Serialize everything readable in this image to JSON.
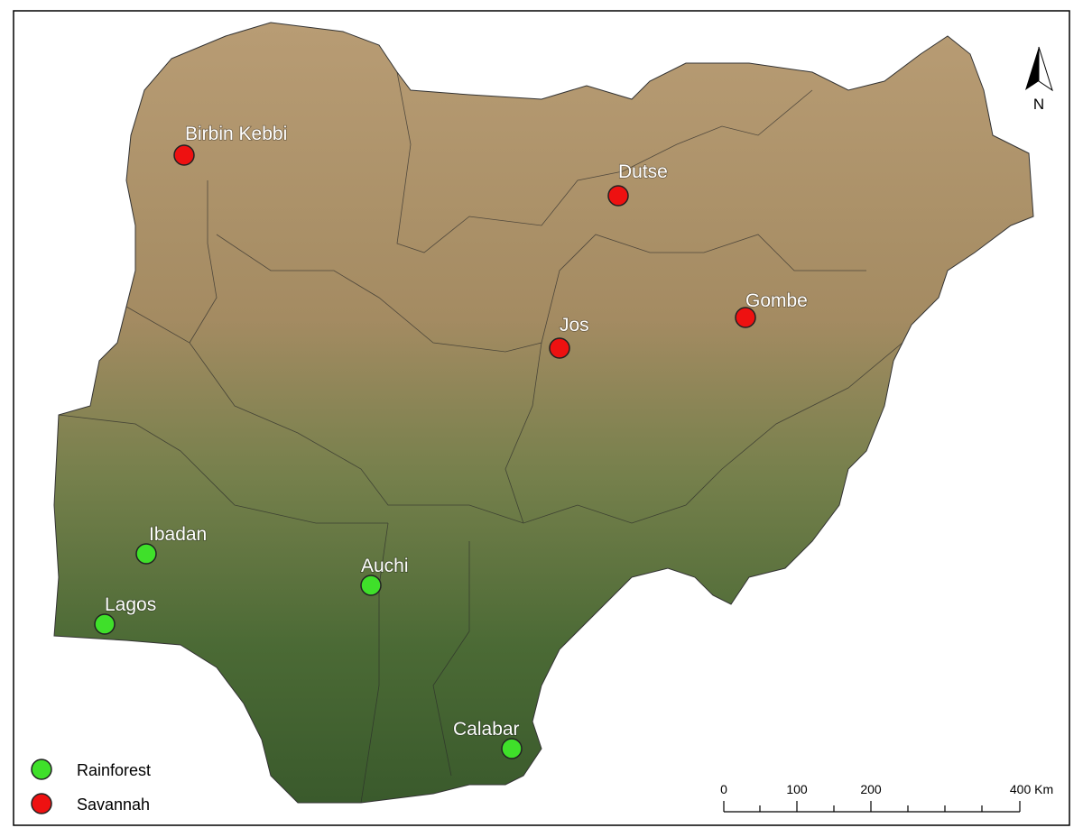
{
  "map": {
    "cities": [
      {
        "label": "Birbin Kebbi"
      },
      {
        "label": "Dutse"
      },
      {
        "label": "Jos"
      },
      {
        "label": "Gombe"
      },
      {
        "label": "Ibadan"
      },
      {
        "label": "Auchi"
      },
      {
        "label": "Lagos"
      },
      {
        "label": "Calabar"
      }
    ]
  },
  "legend": [
    {
      "label": "Rainforest",
      "color": "#3fe02a"
    },
    {
      "label": "Savannah",
      "color": "#ee1111"
    }
  ],
  "scale_bar": {
    "labels": [
      "0",
      "100",
      "200",
      "400 Km"
    ]
  },
  "north_arrow": {
    "label": "N"
  }
}
